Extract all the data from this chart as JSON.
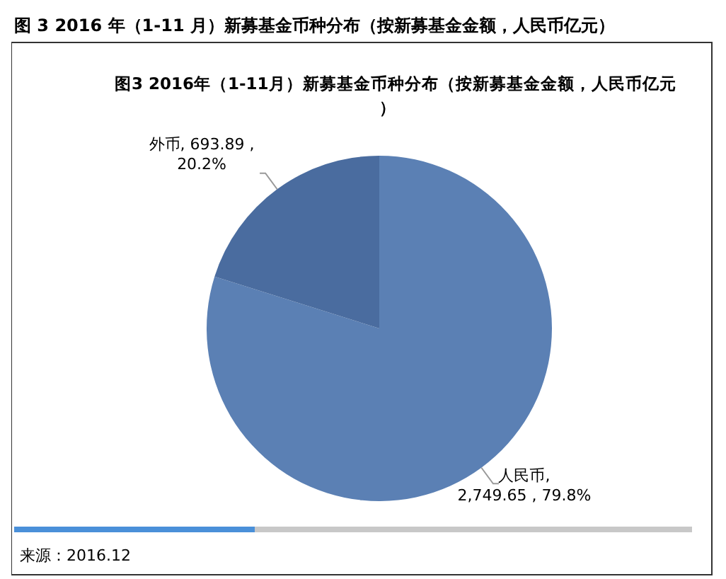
{
  "chart_data": {
    "type": "pie",
    "title": "图 3 2016 年（1-11 月）新募基金币种分布（按新募基金金额，人民币亿元）",
    "subtitle": "图3 2016年（1-11月）新募基金币种分布（按新募基金金额，人民币亿元）",
    "categories": [
      "人民币",
      "外币"
    ],
    "values": [
      2749.65,
      693.89
    ],
    "colors": [
      "#5b80b4",
      "#4a6c9f"
    ],
    "value_labels": [
      ",\n2,749.65 , 79.8%",
      ", 693.89 ,\n20.2%"
    ],
    "annotations": [
      "来源：2016.12"
    ]
  }
}
